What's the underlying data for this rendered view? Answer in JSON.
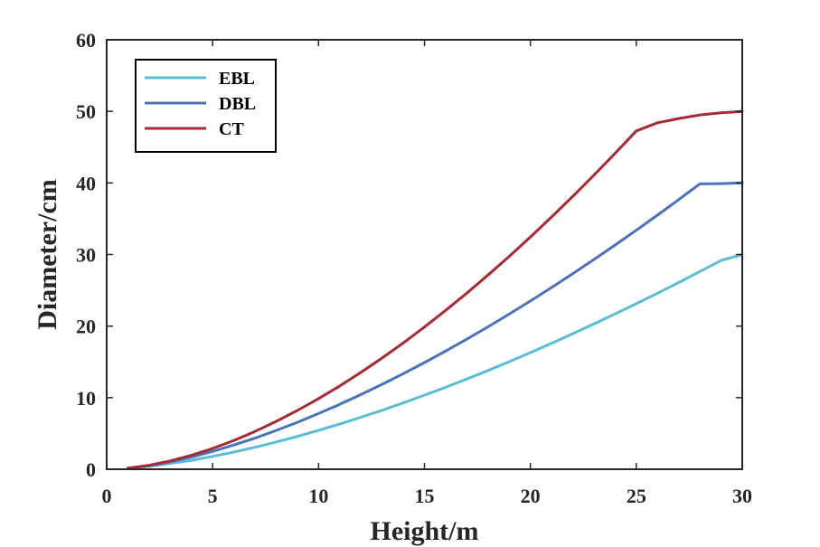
{
  "chart_data": {
    "type": "line",
    "xlabel": "Height/m",
    "ylabel": "Diameter/cm",
    "xlim": [
      0,
      30
    ],
    "ylim": [
      0,
      60
    ],
    "xticks": [
      0,
      5,
      10,
      15,
      20,
      25,
      30
    ],
    "yticks": [
      0,
      10,
      20,
      30,
      40,
      50,
      60
    ],
    "grid": false,
    "legend_position": "top-left",
    "series": [
      {
        "name": "EBL",
        "color": "#5bbcd6",
        "x": [
          1,
          2,
          3,
          4,
          5,
          6,
          7,
          8,
          9,
          10,
          11,
          12,
          13,
          14,
          15,
          16,
          17,
          18,
          19,
          20,
          21,
          22,
          23,
          24,
          25,
          26,
          27,
          28,
          29,
          30
        ],
        "y": [
          0.14,
          0.41,
          0.79,
          1.25,
          1.79,
          2.4,
          3.07,
          3.8,
          4.59,
          5.43,
          6.32,
          7.26,
          8.24,
          9.27,
          10.34,
          11.46,
          12.61,
          13.8,
          15.03,
          16.29,
          17.59,
          18.93,
          20.3,
          21.7,
          23.13,
          24.6,
          26.09,
          27.62,
          29.17,
          30.0
        ]
      },
      {
        "name": "DBL",
        "color": "#4a72b8",
        "x": [
          1,
          2,
          3,
          4,
          5,
          6,
          7,
          8,
          9,
          10,
          11,
          12,
          13,
          14,
          15,
          16,
          17,
          18,
          19,
          20,
          21,
          22,
          23,
          24,
          25,
          26,
          27,
          28,
          29,
          30
        ],
        "y": [
          0.14,
          0.5,
          1.04,
          1.71,
          2.5,
          3.38,
          4.35,
          5.42,
          6.56,
          7.78,
          9.07,
          10.43,
          11.86,
          13.35,
          14.9,
          16.51,
          18.18,
          19.9,
          21.68,
          23.51,
          25.39,
          27.32,
          29.3,
          31.32,
          33.39,
          35.51,
          37.67,
          39.87,
          39.9,
          40.0
        ]
      },
      {
        "name": "CT",
        "color": "#a52a35",
        "x": [
          1,
          2,
          3,
          4,
          5,
          6,
          7,
          8,
          9,
          10,
          11,
          12,
          13,
          14,
          15,
          16,
          17,
          18,
          19,
          20,
          21,
          22,
          23,
          24,
          25,
          26,
          27,
          28,
          29,
          30
        ],
        "y": [
          0.14,
          0.55,
          1.16,
          1.95,
          2.91,
          4.02,
          5.28,
          6.68,
          8.21,
          9.86,
          11.64,
          13.53,
          15.54,
          17.65,
          19.87,
          22.19,
          24.61,
          27.13,
          29.74,
          32.45,
          35.24,
          38.12,
          41.09,
          44.14,
          47.27,
          48.4,
          49.0,
          49.5,
          49.8,
          50.0
        ]
      }
    ]
  }
}
